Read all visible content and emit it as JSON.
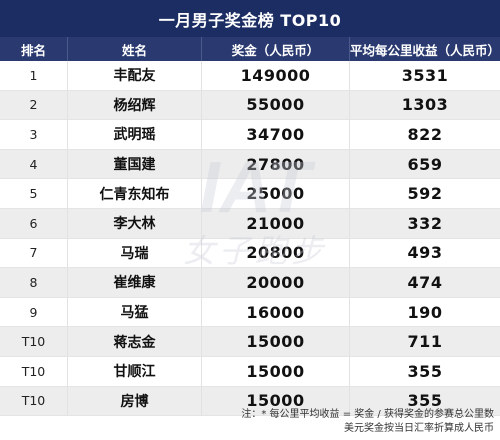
{
  "title": "一月男子奖金榜 TOP10",
  "headers": {
    "rank": "排名",
    "name": "姓名",
    "prize": "奖金（人民币）",
    "avg": "平均每公里收益（人民币）"
  },
  "rows": [
    {
      "rank": "1",
      "name": "丰配友",
      "prize": "149000",
      "avg": "3531"
    },
    {
      "rank": "2",
      "name": "杨绍辉",
      "prize": "55000",
      "avg": "1303"
    },
    {
      "rank": "3",
      "name": "武明瑶",
      "prize": "34700",
      "avg": "822"
    },
    {
      "rank": "4",
      "name": "董国建",
      "prize": "27800",
      "avg": "659"
    },
    {
      "rank": "5",
      "name": "仁青东知布",
      "prize": "25000",
      "avg": "592"
    },
    {
      "rank": "6",
      "name": "李大林",
      "prize": "21000",
      "avg": "332"
    },
    {
      "rank": "7",
      "name": "马瑞",
      "prize": "20800",
      "avg": "493"
    },
    {
      "rank": "8",
      "name": "崔维康",
      "prize": "20000",
      "avg": "474"
    },
    {
      "rank": "9",
      "name": "马猛",
      "prize": "16000",
      "avg": "190"
    },
    {
      "rank": "T10",
      "name": "蒋志金",
      "prize": "15000",
      "avg": "711"
    },
    {
      "rank": "T10",
      "name": "甘顺江",
      "prize": "15000",
      "avg": "355"
    },
    {
      "rank": "T10",
      "name": "房博",
      "prize": "15000",
      "avg": "355"
    }
  ],
  "note": {
    "line1": "注：* 每公里平均收益 = 奖金 / 获得奖金的参赛总公里数",
    "line2": "美元奖金按当日汇率折算成人民币"
  },
  "watermark": {
    "logo": "IAT",
    "text": "女子跑步"
  },
  "colors": {
    "title_bg": "#1c2d63",
    "header_bg": "#2a3a70",
    "row_alt": "#ededed"
  }
}
